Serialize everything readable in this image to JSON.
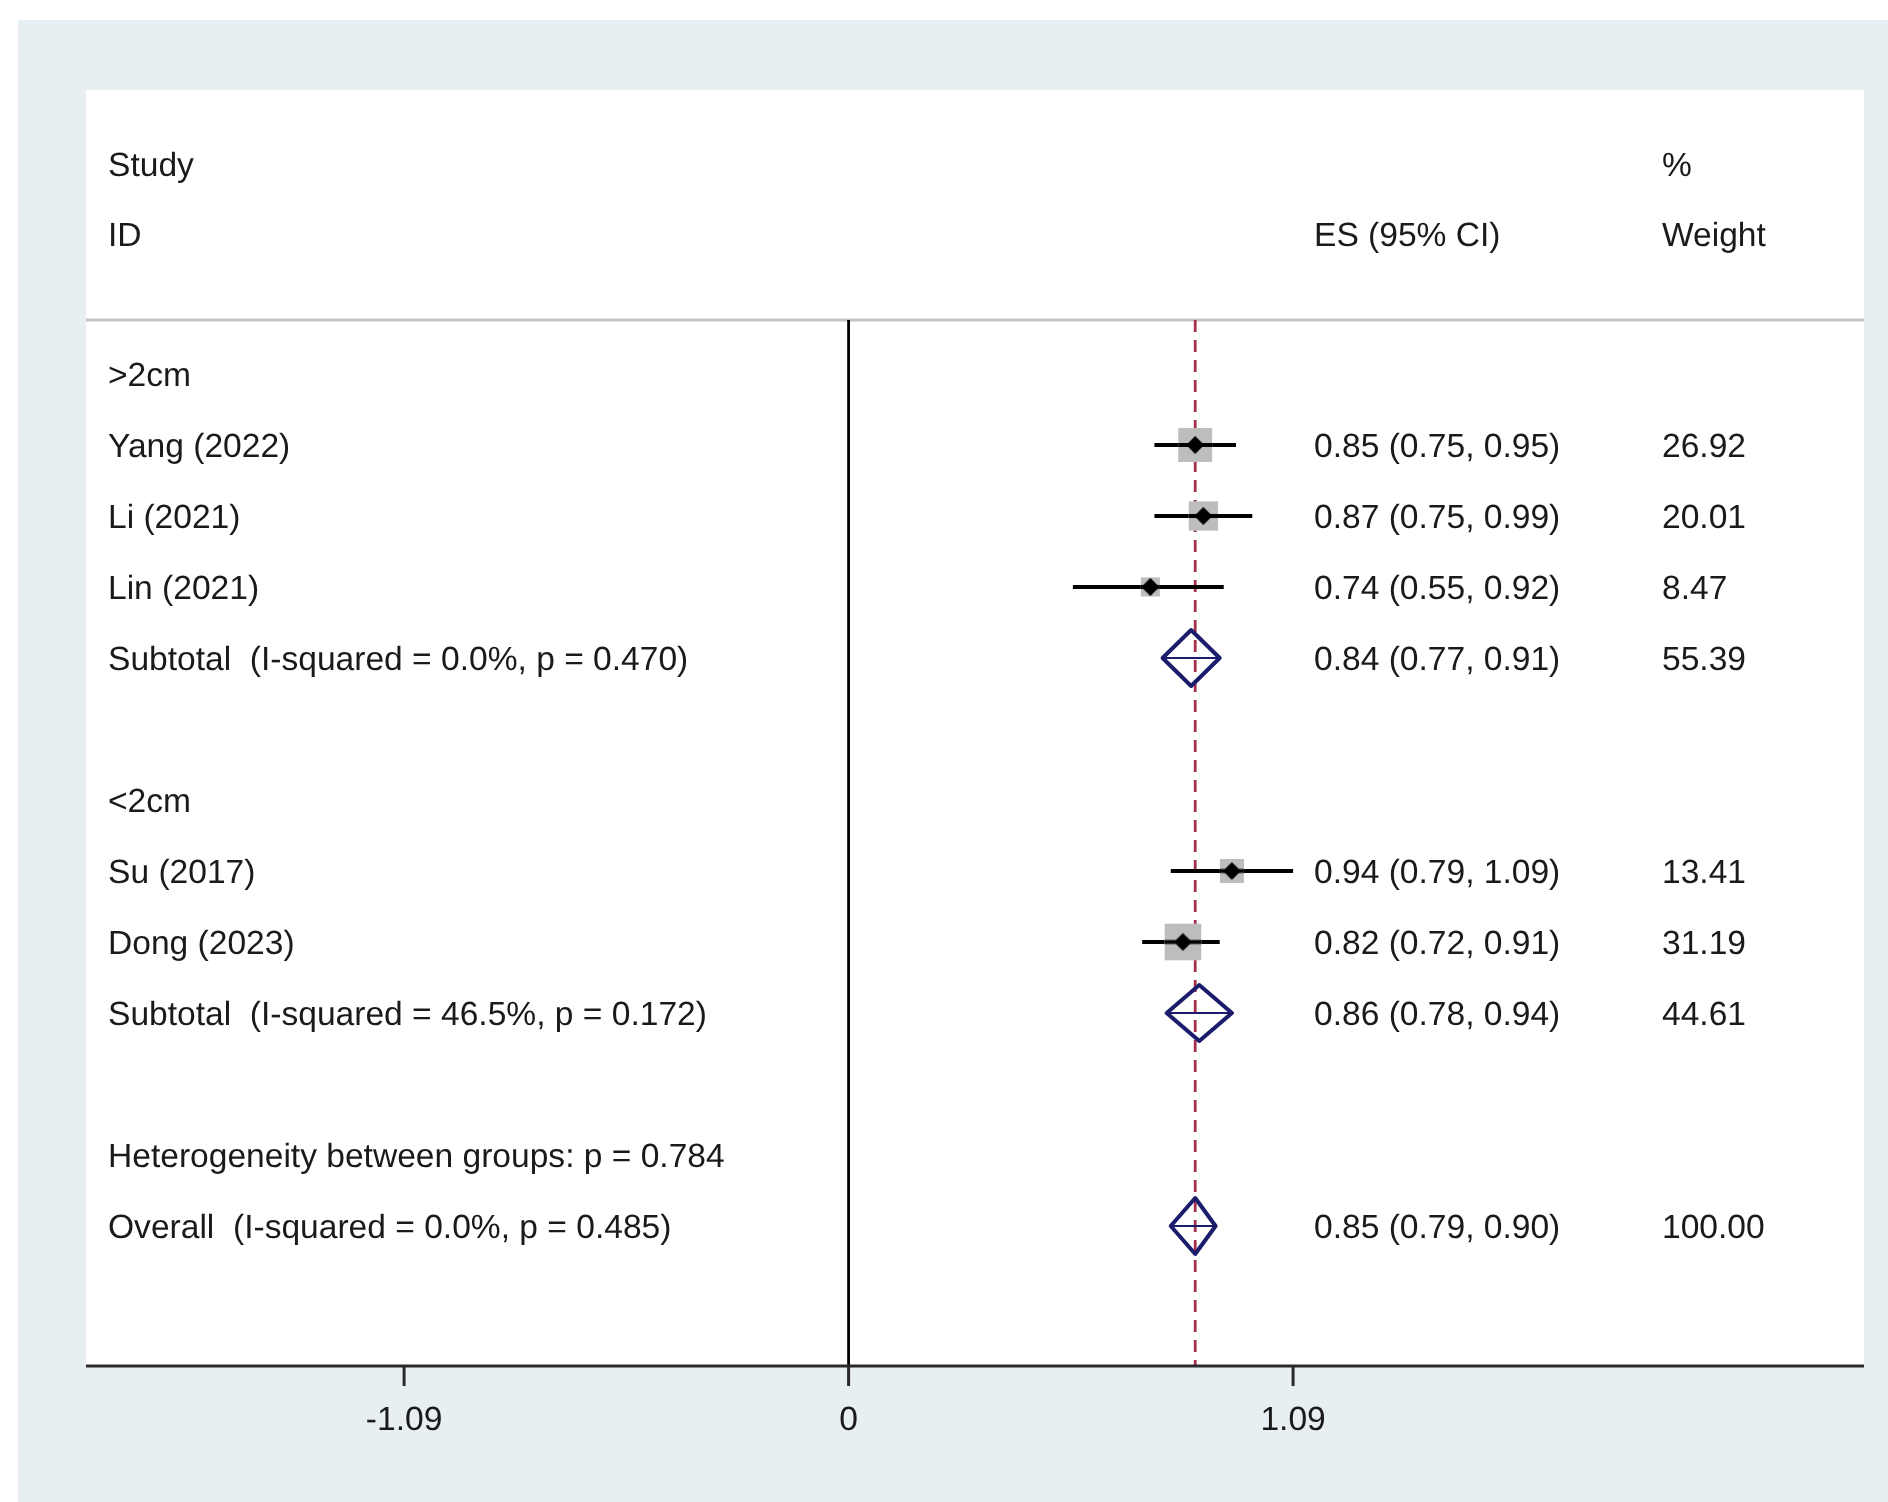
{
  "chart_data": {
    "type": "scatter",
    "orientation": "horizontal",
    "ylabel": "Study ID",
    "categories": [
      ">2cm",
      "Yang (2022)",
      "Li (2021)",
      "Lin (2021)",
      "Subtotal  (I-squared = 0.0%, p = 0.470)",
      null,
      "<2cm",
      "Su (2017)",
      "Dong (2023)",
      "Subtotal  (I-squared = 46.5%, p = 0.172)",
      null,
      "Heterogeneity between groups: p = 0.784",
      "Overall  (I-squared = 0.0%, p = 0.485)"
    ],
    "series": [
      {
        "type": "bubble",
        "marker": "square",
        "color": "#bdbdbd",
        "values": [
          null,
          0.85,
          0.87,
          0.74,
          null,
          null,
          null,
          0.94,
          0.82,
          null,
          null,
          null,
          null
        ],
        "errors": [
          null,
          [
            0.75,
            0.95
          ],
          [
            0.75,
            0.99
          ],
          [
            0.55,
            0.92
          ],
          null,
          null,
          null,
          [
            0.79,
            1.09
          ],
          [
            0.72,
            0.91
          ],
          null,
          null,
          null,
          null
        ],
        "sizes": [
          null,
          0.86,
          0.64,
          0.27,
          null,
          null,
          null,
          0.43,
          1,
          null,
          null,
          null,
          null
        ]
      },
      {
        "marker": "diamond",
        "color": "#1c1c6c",
        "values": [
          null,
          null,
          null,
          null,
          0.84,
          null,
          null,
          null,
          null,
          0.86,
          null,
          null,
          0.85
        ],
        "errors": [
          null,
          null,
          null,
          null,
          [
            0.77,
            0.91
          ],
          null,
          null,
          null,
          null,
          [
            0.78,
            0.94
          ],
          null,
          null,
          [
            0.79,
            0.9
          ]
        ]
      }
    ],
    "xlim": [
      -1.87,
      2.49
    ],
    "xticks": [
      -1.09,
      0,
      1.09
    ],
    "ref_lines": [
      {
        "axis": "x",
        "value": 0,
        "color": "#000000",
        "line_style": "solid"
      },
      {
        "axis": "x",
        "value": 0.85,
        "color": "#a3324a",
        "line_style": "dashed"
      }
    ],
    "annotations": [
      "ES (95% CI)",
      "% Weight",
      "0.85 (0.75, 0.95)",
      "26.92",
      "0.87 (0.75, 0.99)",
      "20.01",
      "0.74 (0.55, 0.92)",
      "8.47",
      "0.84 (0.77, 0.91)",
      "55.39",
      "0.94 (0.79, 1.09)",
      "13.41",
      "0.82 (0.72, 0.91)",
      "31.19",
      "0.86 (0.78, 0.94)",
      "44.61",
      "0.85 (0.79, 0.90)",
      "100.00"
    ]
  }
}
